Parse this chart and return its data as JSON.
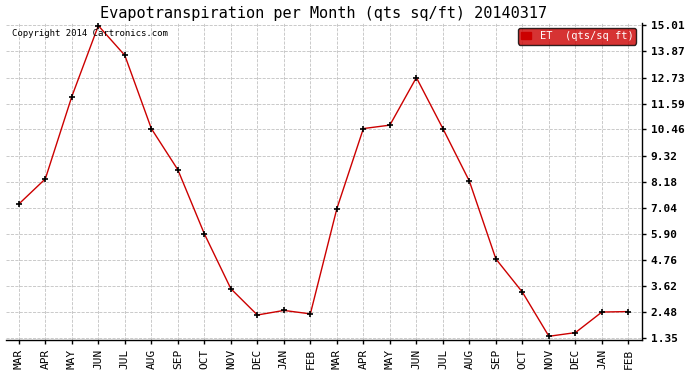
{
  "title": "Evapotranspiration per Month (qts sq/ft) 20140317",
  "copyright": "Copyright 2014 Cartronics.com",
  "legend_label": "ET  (qts/sq ft)",
  "categories": [
    "MAR",
    "APR",
    "MAY",
    "JUN",
    "JUL",
    "AUG",
    "SEP",
    "OCT",
    "NOV",
    "DEC",
    "JAN",
    "FEB",
    "MAR",
    "APR",
    "MAY",
    "JUN",
    "JUL",
    "AUG",
    "SEP",
    "OCT",
    "NOV",
    "DEC",
    "JAN",
    "FEB"
  ],
  "values": [
    7.2,
    8.3,
    11.9,
    15.0,
    13.7,
    10.5,
    8.7,
    5.9,
    3.5,
    2.35,
    2.55,
    2.4,
    7.0,
    10.5,
    10.65,
    12.73,
    10.5,
    8.2,
    4.8,
    3.35,
    1.42,
    1.58,
    2.48,
    2.5
  ],
  "ylim_min": 1.35,
  "ylim_max": 15.01,
  "yticks": [
    1.35,
    2.48,
    3.62,
    4.76,
    5.9,
    7.04,
    8.18,
    9.32,
    10.46,
    11.59,
    12.73,
    13.87,
    15.01
  ],
  "ytick_labels": [
    "1.35",
    "2.48",
    "3.62",
    "4.76",
    "5.90",
    "7.04",
    "8.18",
    "9.32",
    "10.46",
    "11.59",
    "12.73",
    "13.87",
    "15.01"
  ],
  "line_color": "#cc0000",
  "marker_color": "#000000",
  "bg_color": "#ffffff",
  "grid_color": "#bbbbbb",
  "legend_bg": "#cc0000",
  "legend_text_color": "#ffffff",
  "title_fontsize": 11,
  "tick_fontsize": 8,
  "copyright_fontsize": 6.5
}
